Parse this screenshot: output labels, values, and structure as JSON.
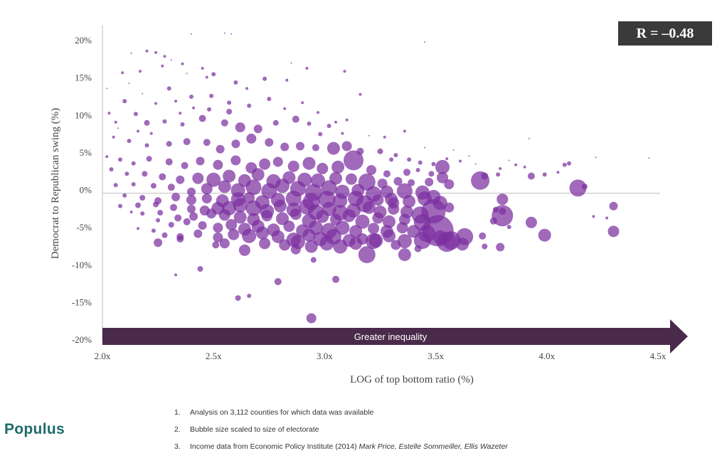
{
  "annotation": {
    "r_value": "R = –0.48",
    "arrow_label": "Greater inequality"
  },
  "brand": {
    "logo_text": "Populus"
  },
  "footnotes": [
    {
      "num": "1.",
      "text": "Analysis on 3,112 counties for which data was available",
      "italic": ""
    },
    {
      "num": "2.",
      "text": "Bubble size scaled to size of electorate",
      "italic": ""
    },
    {
      "num": "3.",
      "text": "Income data from Economic Policy Institute (2014) ",
      "italic": "Mark Price, Estelle Sommeiller, Ellis Wazeter"
    }
  ],
  "colors": {
    "bubble": "#7b2fa0",
    "arrow": "#4a2a4a",
    "axis": "#bbbbbb"
  },
  "chart_data": {
    "type": "scatter",
    "title": "",
    "xlabel": "LOG of top bottom ratio (%)",
    "ylabel": "Democrat to Republican swing (%)",
    "xlim": [
      2.0,
      4.5
    ],
    "ylim": [
      -20,
      20
    ],
    "x_ticks": [
      "2.0x",
      "2.5x",
      "3.0x",
      "3.5x",
      "4.0x",
      "4.5x"
    ],
    "y_ticks": [
      "20%",
      "15%",
      "10%",
      "5%",
      "0%",
      "-5%",
      "-10%",
      "-15%",
      "-20%"
    ],
    "reference_line_y": -0.5,
    "grid": false,
    "bubble_size": "size of electorate",
    "points": [
      [
        2.55,
        20.9,
        1
      ],
      [
        2.58,
        20.8,
        1
      ],
      [
        2.4,
        20.8,
        1
      ],
      [
        2.2,
        18.5,
        2
      ],
      [
        2.24,
        18.3,
        2
      ],
      [
        2.13,
        18.2,
        1
      ],
      [
        2.28,
        17.8,
        2
      ],
      [
        2.31,
        17.3,
        1
      ],
      [
        2.36,
        16.8,
        2
      ],
      [
        2.45,
        16.2,
        2
      ],
      [
        2.5,
        15.4,
        3
      ],
      [
        2.47,
        15.0,
        2
      ],
      [
        2.38,
        15.5,
        1
      ],
      [
        2.27,
        16.5,
        2
      ],
      [
        2.17,
        15.8,
        2
      ],
      [
        2.09,
        15.6,
        2
      ],
      [
        2.3,
        13.5,
        3
      ],
      [
        2.4,
        12.4,
        3
      ],
      [
        2.6,
        14.3,
        3
      ],
      [
        2.65,
        13.5,
        2
      ],
      [
        2.73,
        14.8,
        3
      ],
      [
        2.83,
        14.6,
        2
      ],
      [
        2.92,
        16.2,
        2
      ],
      [
        2.85,
        16.9,
        1
      ],
      [
        3.09,
        15.8,
        2
      ],
      [
        3.45,
        19.7,
        1
      ],
      [
        3.16,
        12.7,
        2
      ],
      [
        3.1,
        9.3,
        2
      ],
      [
        3.05,
        9.0,
        2
      ],
      [
        3.02,
        8.5,
        3
      ],
      [
        2.1,
        11.8,
        3
      ],
      [
        2.15,
        10.1,
        3
      ],
      [
        2.03,
        10.2,
        2
      ],
      [
        2.2,
        8.9,
        4
      ],
      [
        2.28,
        9.1,
        3
      ],
      [
        2.36,
        8.7,
        3
      ],
      [
        2.45,
        9.5,
        5
      ],
      [
        2.55,
        8.9,
        5
      ],
      [
        2.62,
        8.3,
        7
      ],
      [
        2.7,
        8.1,
        6
      ],
      [
        2.78,
        8.9,
        4
      ],
      [
        2.87,
        9.4,
        5
      ],
      [
        2.93,
        8.8,
        3
      ],
      [
        2.98,
        7.4,
        3
      ],
      [
        3.08,
        7.5,
        2
      ],
      [
        2.05,
        7.0,
        2
      ],
      [
        2.12,
        6.5,
        3
      ],
      [
        2.2,
        5.9,
        3
      ],
      [
        2.3,
        6.1,
        4
      ],
      [
        2.38,
        6.4,
        5
      ],
      [
        2.47,
        6.3,
        5
      ],
      [
        2.53,
        5.4,
        6
      ],
      [
        2.6,
        6.1,
        6
      ],
      [
        2.67,
        6.8,
        7
      ],
      [
        2.75,
        6.3,
        6
      ],
      [
        2.82,
        5.7,
        6
      ],
      [
        2.89,
        5.8,
        6
      ],
      [
        2.96,
        5.6,
        5
      ],
      [
        3.04,
        5.5,
        9
      ],
      [
        3.1,
        5.8,
        7
      ],
      [
        3.16,
        5.1,
        5
      ],
      [
        3.25,
        5.1,
        4
      ],
      [
        3.32,
        4.6,
        3
      ],
      [
        3.3,
        4.0,
        3
      ],
      [
        3.38,
        4.0,
        3
      ],
      [
        3.43,
        3.6,
        3
      ],
      [
        3.49,
        3.4,
        3
      ],
      [
        3.55,
        4.1,
        2
      ],
      [
        3.61,
        3.8,
        2
      ],
      [
        3.79,
        2.8,
        2
      ],
      [
        3.86,
        3.3,
        2
      ],
      [
        3.9,
        3.0,
        2
      ],
      [
        3.92,
        6.8,
        1
      ],
      [
        3.83,
        3.9,
        1
      ],
      [
        4.1,
        3.5,
        3
      ],
      [
        4.22,
        4.3,
        1
      ],
      [
        4.46,
        4.2,
        1
      ],
      [
        2.02,
        4.4,
        2
      ],
      [
        2.08,
        4.0,
        3
      ],
      [
        2.14,
        3.5,
        3
      ],
      [
        2.21,
        4.1,
        4
      ],
      [
        2.3,
        3.7,
        5
      ],
      [
        2.37,
        3.2,
        5
      ],
      [
        2.44,
        3.8,
        6
      ],
      [
        2.52,
        3.3,
        7
      ],
      [
        2.6,
        3.9,
        7
      ],
      [
        2.67,
        2.9,
        8
      ],
      [
        2.73,
        3.4,
        8
      ],
      [
        2.79,
        3.7,
        7
      ],
      [
        2.86,
        3.1,
        8
      ],
      [
        2.93,
        3.5,
        9
      ],
      [
        2.99,
        2.8,
        8
      ],
      [
        3.06,
        3.0,
        9
      ],
      [
        3.13,
        3.9,
        14
      ],
      [
        3.21,
        2.6,
        7
      ],
      [
        3.28,
        2.1,
        5
      ],
      [
        3.37,
        2.3,
        5
      ],
      [
        3.42,
        2.6,
        3
      ],
      [
        3.48,
        2.1,
        4
      ],
      [
        3.53,
        3.0,
        10
      ],
      [
        2.04,
        2.7,
        3
      ],
      [
        2.11,
        2.1,
        3
      ],
      [
        2.19,
        2.1,
        4
      ],
      [
        2.27,
        1.7,
        5
      ],
      [
        2.35,
        1.3,
        6
      ],
      [
        2.43,
        1.5,
        8
      ],
      [
        2.5,
        1.3,
        10
      ],
      [
        2.57,
        1.8,
        9
      ],
      [
        2.64,
        1.2,
        9
      ],
      [
        2.7,
        2.0,
        9
      ],
      [
        2.77,
        1.1,
        10
      ],
      [
        2.84,
        1.6,
        9
      ],
      [
        2.91,
        1.3,
        10
      ],
      [
        2.97,
        1.2,
        10
      ],
      [
        3.05,
        1.5,
        9
      ],
      [
        3.12,
        1.4,
        8
      ],
      [
        3.19,
        1.0,
        12
      ],
      [
        3.26,
        0.8,
        7
      ],
      [
        3.33,
        1.1,
        6
      ],
      [
        3.39,
        0.9,
        5
      ],
      [
        3.47,
        1.0,
        6
      ],
      [
        3.53,
        1.6,
        8
      ],
      [
        3.56,
        0.7,
        7
      ],
      [
        3.7,
        1.2,
        13
      ],
      [
        3.72,
        1.8,
        5
      ],
      [
        3.78,
        2.0,
        3
      ],
      [
        3.93,
        1.8,
        5
      ],
      [
        3.99,
        2.0,
        3
      ],
      [
        4.08,
        3.3,
        3
      ],
      [
        4.14,
        0.2,
        12
      ],
      [
        4.17,
        0.4,
        4
      ],
      [
        2.06,
        0.6,
        3
      ],
      [
        2.14,
        0.7,
        3
      ],
      [
        2.23,
        0.5,
        4
      ],
      [
        2.31,
        0.3,
        5
      ],
      [
        2.4,
        -0.3,
        6
      ],
      [
        2.47,
        0.1,
        8
      ],
      [
        2.55,
        0.4,
        9
      ],
      [
        2.61,
        -0.1,
        10
      ],
      [
        2.68,
        0.3,
        11
      ],
      [
        2.75,
        -0.2,
        11
      ],
      [
        2.81,
        0.5,
        10
      ],
      [
        2.88,
        0.1,
        11
      ],
      [
        2.95,
        -0.4,
        12
      ],
      [
        3.02,
        0.2,
        11
      ],
      [
        3.08,
        -0.3,
        10
      ],
      [
        3.15,
        -0.1,
        9
      ],
      [
        3.22,
        -0.6,
        11
      ],
      [
        3.28,
        -0.3,
        9
      ],
      [
        3.3,
        -1.3,
        9
      ],
      [
        3.36,
        -0.2,
        11
      ],
      [
        3.44,
        -0.4,
        10
      ],
      [
        3.49,
        -1.0,
        10
      ],
      [
        2.1,
        -0.8,
        3
      ],
      [
        2.18,
        -1.1,
        4
      ],
      [
        2.25,
        -1.5,
        5
      ],
      [
        2.33,
        -1.0,
        6
      ],
      [
        2.4,
        -1.4,
        7
      ],
      [
        2.47,
        -1.2,
        7
      ],
      [
        2.54,
        -1.5,
        9
      ],
      [
        2.61,
        -1.3,
        10
      ],
      [
        2.66,
        -1.1,
        8
      ],
      [
        2.72,
        -1.7,
        10
      ],
      [
        2.79,
        -1.4,
        10
      ],
      [
        2.86,
        -1.2,
        11
      ],
      [
        2.94,
        -1.6,
        12
      ],
      [
        3.01,
        -1.3,
        12
      ],
      [
        3.07,
        -1.5,
        10
      ],
      [
        3.14,
        -1.2,
        11
      ],
      [
        3.18,
        -1.9,
        12
      ],
      [
        3.24,
        -1.4,
        8
      ],
      [
        3.31,
        -1.8,
        8
      ],
      [
        3.38,
        -1.6,
        9
      ],
      [
        3.45,
        -1.2,
        10
      ],
      [
        3.52,
        -1.8,
        10
      ],
      [
        3.56,
        -2.4,
        7
      ],
      [
        3.8,
        -1.3,
        8
      ],
      [
        4.3,
        -2.2,
        6
      ],
      [
        2.08,
        -2.2,
        3
      ],
      [
        2.16,
        -2.1,
        4
      ],
      [
        2.24,
        -2.0,
        4
      ],
      [
        2.32,
        -2.4,
        5
      ],
      [
        2.4,
        -2.6,
        6
      ],
      [
        2.46,
        -2.8,
        7
      ],
      [
        2.52,
        -2.5,
        9
      ],
      [
        2.57,
        -2.5,
        10
      ],
      [
        2.62,
        -2.1,
        10
      ],
      [
        2.68,
        -2.5,
        11
      ],
      [
        2.74,
        -2.9,
        10
      ],
      [
        2.8,
        -2.2,
        9
      ],
      [
        2.86,
        -2.7,
        10
      ],
      [
        2.92,
        -2.3,
        11
      ],
      [
        2.96,
        -3.0,
        11
      ],
      [
        3.02,
        -2.6,
        10
      ],
      [
        3.07,
        -3.1,
        11
      ],
      [
        3.13,
        -2.8,
        10
      ],
      [
        3.2,
        -2.4,
        9
      ],
      [
        3.25,
        -3.0,
        9
      ],
      [
        3.31,
        -2.6,
        8
      ],
      [
        3.37,
        -3.0,
        9
      ],
      [
        3.43,
        -3.4,
        12
      ],
      [
        3.49,
        -2.9,
        17
      ],
      [
        3.77,
        -2.7,
        4
      ],
      [
        3.8,
        -2.9,
        5
      ],
      [
        3.8,
        -3.5,
        15
      ],
      [
        2.13,
        -3.0,
        2
      ],
      [
        2.18,
        -3.2,
        3
      ],
      [
        2.26,
        -3.1,
        4
      ],
      [
        2.34,
        -3.8,
        5
      ],
      [
        2.41,
        -3.6,
        6
      ],
      [
        2.49,
        -3.2,
        7
      ],
      [
        2.55,
        -3.4,
        8
      ],
      [
        2.62,
        -3.7,
        9
      ],
      [
        2.68,
        -4.0,
        9
      ],
      [
        2.74,
        -3.5,
        8
      ],
      [
        2.81,
        -3.9,
        9
      ],
      [
        2.87,
        -3.3,
        8
      ],
      [
        2.93,
        -4.2,
        10
      ],
      [
        2.99,
        -3.6,
        9
      ],
      [
        3.05,
        -4.0,
        8
      ],
      [
        3.11,
        -3.5,
        9
      ],
      [
        3.17,
        -4.3,
        10
      ],
      [
        3.24,
        -3.8,
        8
      ],
      [
        3.29,
        -4.3,
        9
      ],
      [
        3.36,
        -4.0,
        8
      ],
      [
        3.44,
        -4.4,
        12
      ],
      [
        3.51,
        -5.5,
        22
      ],
      [
        3.76,
        -4.2,
        5
      ],
      [
        3.93,
        -4.4,
        8
      ],
      [
        4.21,
        -3.6,
        2
      ],
      [
        4.27,
        -3.8,
        2
      ],
      [
        4.3,
        -5.6,
        8
      ],
      [
        2.25,
        -4.1,
        3
      ],
      [
        2.31,
        -4.7,
        4
      ],
      [
        2.38,
        -4.3,
        5
      ],
      [
        2.45,
        -4.8,
        6
      ],
      [
        2.52,
        -5.1,
        7
      ],
      [
        2.58,
        -4.7,
        8
      ],
      [
        2.64,
        -5.3,
        9
      ],
      [
        2.7,
        -4.9,
        9
      ],
      [
        2.77,
        -5.4,
        9
      ],
      [
        2.84,
        -4.9,
        8
      ],
      [
        2.9,
        -5.5,
        9
      ],
      [
        2.96,
        -5.1,
        10
      ],
      [
        3.02,
        -5.5,
        11
      ],
      [
        3.08,
        -5.1,
        10
      ],
      [
        3.14,
        -5.6,
        9
      ],
      [
        3.22,
        -5.2,
        8
      ],
      [
        3.28,
        -5.6,
        9
      ],
      [
        3.35,
        -5.1,
        8
      ],
      [
        3.4,
        -5.6,
        9
      ],
      [
        3.46,
        -5.9,
        12
      ],
      [
        3.52,
        -6.4,
        10
      ],
      [
        3.57,
        -6.8,
        13
      ],
      [
        3.63,
        -6.3,
        12
      ],
      [
        3.99,
        -6.1,
        9
      ],
      [
        3.71,
        -6.2,
        5
      ],
      [
        3.83,
        -5.0,
        3
      ],
      [
        2.16,
        -5.2,
        2
      ],
      [
        2.23,
        -5.5,
        3
      ],
      [
        2.28,
        -6.1,
        4
      ],
      [
        2.35,
        -6.3,
        5
      ],
      [
        2.43,
        -5.9,
        6
      ],
      [
        2.52,
        -6.4,
        7
      ],
      [
        2.59,
        -6.0,
        8
      ],
      [
        2.66,
        -6.2,
        10
      ],
      [
        2.72,
        -5.8,
        9
      ],
      [
        2.79,
        -6.3,
        9
      ],
      [
        2.86,
        -6.7,
        10
      ],
      [
        2.93,
        -6.1,
        9
      ],
      [
        2.98,
        -6.6,
        10
      ],
      [
        3.04,
        -6.3,
        11
      ],
      [
        3.11,
        -6.8,
        9
      ],
      [
        3.17,
        -6.6,
        8
      ],
      [
        3.23,
        -6.8,
        10
      ],
      [
        3.29,
        -6.2,
        9
      ],
      [
        3.36,
        -6.9,
        10
      ],
      [
        3.44,
        -6.8,
        12
      ],
      [
        3.55,
        -7.0,
        14
      ],
      [
        3.62,
        -7.3,
        9
      ],
      [
        3.72,
        -7.6,
        4
      ],
      [
        3.79,
        -7.7,
        6
      ],
      [
        2.25,
        -7.1,
        6
      ],
      [
        2.35,
        -6.6,
        5
      ],
      [
        2.51,
        -7.4,
        5
      ],
      [
        2.55,
        -7.2,
        7
      ],
      [
        2.64,
        -8.1,
        8
      ],
      [
        2.73,
        -7.2,
        8
      ],
      [
        2.82,
        -7.4,
        8
      ],
      [
        2.88,
        -7.0,
        10
      ],
      [
        2.94,
        -7.6,
        9
      ],
      [
        3.01,
        -7.2,
        10
      ],
      [
        3.07,
        -7.6,
        10
      ],
      [
        3.14,
        -7.2,
        9
      ],
      [
        3.22,
        -6.9,
        11
      ],
      [
        3.32,
        -7.4,
        7
      ],
      [
        3.42,
        -7.9,
        5
      ],
      [
        3.19,
        -8.7,
        12
      ],
      [
        3.36,
        -8.7,
        9
      ],
      [
        2.87,
        -8.0,
        7
      ],
      [
        2.95,
        -9.4,
        4
      ],
      [
        2.33,
        -11.4,
        2
      ],
      [
        2.44,
        -10.6,
        4
      ],
      [
        2.79,
        -12.3,
        5
      ],
      [
        3.05,
        -12.0,
        5
      ],
      [
        2.61,
        -14.5,
        4
      ],
      [
        2.66,
        -14.2,
        3
      ],
      [
        2.94,
        -17.2,
        7
      ],
      [
        2.06,
        9.0,
        2
      ],
      [
        2.02,
        13.5,
        1
      ],
      [
        2.12,
        14.2,
        1
      ],
      [
        2.18,
        12.8,
        1
      ],
      [
        2.24,
        11.5,
        2
      ],
      [
        2.33,
        11.8,
        2
      ],
      [
        2.41,
        10.9,
        2
      ],
      [
        2.49,
        12.5,
        3
      ],
      [
        2.57,
        11.6,
        3
      ],
      [
        2.66,
        11.2,
        3
      ],
      [
        2.75,
        12.1,
        3
      ],
      [
        2.82,
        10.8,
        2
      ],
      [
        2.9,
        11.6,
        2
      ],
      [
        2.97,
        10.3,
        2
      ],
      [
        2.57,
        10.4,
        4
      ],
      [
        2.48,
        10.7,
        3
      ],
      [
        2.35,
        10.2,
        2
      ],
      [
        2.22,
        7.5,
        2
      ],
      [
        2.16,
        7.8,
        2
      ],
      [
        2.07,
        8.2,
        1
      ],
      [
        3.36,
        7.8,
        2
      ],
      [
        3.27,
        7.0,
        2
      ],
      [
        3.2,
        7.2,
        1
      ],
      [
        3.45,
        5.6,
        1
      ],
      [
        3.58,
        5.3,
        1
      ],
      [
        3.65,
        4.5,
        1
      ],
      [
        3.68,
        3.4,
        1
      ],
      [
        4.05,
        2.3,
        2
      ]
    ]
  }
}
